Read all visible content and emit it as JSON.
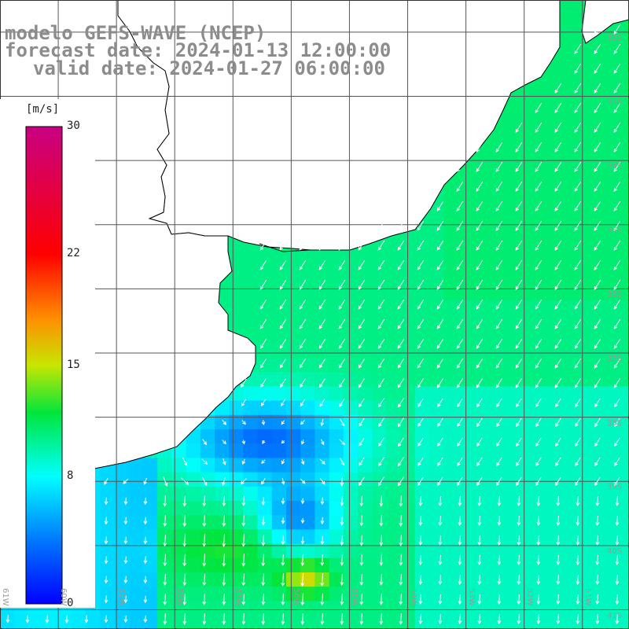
{
  "title": {
    "line1": "modelo GEFS-WAVE (NCEP)",
    "line2": "forecast date: 2024-01-13 12:00:00",
    "line3": "valid date: 2024-01-27 06:00:00"
  },
  "colorbar": {
    "units": "[m/s]",
    "min": 0,
    "max": 30,
    "tick_labels": [
      "30",
      "22",
      "15",
      "8",
      "0"
    ],
    "tick_values": [
      30,
      22,
      15,
      8,
      0
    ]
  },
  "map": {
    "lon_range": [
      -61,
      -50.2
    ],
    "lat_range": [
      -41.3,
      -31.5
    ],
    "lat_labels": [
      "32S",
      "33S",
      "34S",
      "35S",
      "36S",
      "37S",
      "38S",
      "39S",
      "40S",
      "41S"
    ],
    "lat_values": [
      -32,
      -33,
      -34,
      -35,
      -36,
      -37,
      -38,
      -39,
      -40,
      -41
    ],
    "lon_labels": [
      "61W",
      "60W",
      "59W",
      "58W",
      "57W",
      "56W",
      "55W",
      "54W",
      "53W",
      "52W",
      "51W"
    ],
    "lon_values": [
      -61,
      -60,
      -59,
      -58,
      -57,
      -56,
      -55,
      -54,
      -53,
      -52,
      -51
    ],
    "land_color": "#ffffff",
    "grid_color": "#555555",
    "arrow_color": "#ffffff"
  }
}
